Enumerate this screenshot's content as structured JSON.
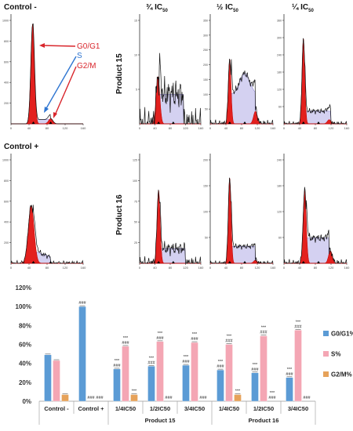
{
  "figure": {
    "row_labels": [
      "Control -",
      "Control +"
    ],
    "column_labels": [
      {
        "main": "¾ IC",
        "sub": "50"
      },
      {
        "main": "½ IC",
        "sub": "50"
      },
      {
        "main": "¼ IC",
        "sub": "50"
      }
    ],
    "product_labels": [
      "Product 15",
      "Product 16"
    ],
    "annotations": {
      "g0g1": "G0/G1",
      "s": "S",
      "g2m": "G2/M"
    }
  },
  "histograms": [
    {
      "id": "control-neg",
      "ymax_label": "1200",
      "yticks": [
        "1000",
        "800",
        "600",
        "400",
        "200"
      ],
      "xticks": [
        "0",
        "40",
        "80",
        "120",
        "160"
      ]
    },
    {
      "id": "p15-3-4",
      "ymax_label": "",
      "yticks": [
        "15",
        "10",
        "5"
      ],
      "xticks": [
        "0",
        "40",
        "80",
        "120",
        "160"
      ]
    },
    {
      "id": "p15-1-2",
      "ymax_label": "",
      "yticks": [
        "350",
        "300",
        "250",
        "200",
        "150",
        "100",
        "50"
      ],
      "xticks": [
        "0",
        "40",
        "80",
        "120",
        "160"
      ]
    },
    {
      "id": "p15-1-4",
      "ymax_label": "",
      "yticks": [
        "360",
        "300",
        "240",
        "180",
        "120",
        "60"
      ],
      "xticks": [
        "0",
        "40",
        "80",
        "120",
        "160"
      ]
    },
    {
      "id": "control-pos",
      "ymax_label": "",
      "yticks": [
        "1000",
        "800",
        "600",
        "400",
        "200"
      ],
      "xticks": [
        "0",
        "40",
        "80",
        "120",
        "160"
      ]
    },
    {
      "id": "p16-3-4",
      "ymax_label": "",
      "yticks": [
        "125",
        "100",
        "75",
        "50",
        "25"
      ],
      "xticks": [
        "0",
        "40",
        "80",
        "120",
        "160"
      ]
    },
    {
      "id": "p16-1-2",
      "ymax_label": "",
      "yticks": [
        "200",
        "150",
        "100",
        "50"
      ],
      "xticks": [
        "0",
        "40",
        "80",
        "120",
        "160"
      ]
    },
    {
      "id": "p16-1-4",
      "ymax_label": "",
      "yticks": [
        "240",
        "180",
        "120",
        "60"
      ],
      "xticks": [
        "0",
        "40",
        "80",
        "120",
        "160"
      ]
    }
  ],
  "chart_data": {
    "type": "bar",
    "categories": [
      "Control -",
      "Control +",
      "1/4IC50",
      "1/2IC50",
      "3/4IC50",
      "1/4IC50",
      "1/2IC50",
      "3/4IC50"
    ],
    "groups": [
      {
        "label": "Product 15",
        "from": 2,
        "to": 4
      },
      {
        "label": "Product 16",
        "from": 5,
        "to": 7
      }
    ],
    "series": [
      {
        "name": "G0/G1%",
        "color": "#5b9bd5",
        "values": [
          49,
          100,
          34,
          37,
          38,
          33,
          30,
          25
        ],
        "labels": [
          "",
          "###",
          "***\n###",
          "***\n###",
          "***\n###",
          "***\n###",
          "***\n###",
          "***\n###"
        ]
      },
      {
        "name": "S%",
        "color": "#f4a6b4",
        "values": [
          43,
          0,
          58,
          63,
          62,
          60,
          69,
          75
        ],
        "labels": [
          "",
          "###",
          "***\n###",
          "***\n###",
          "***\n###",
          "***\n###",
          "***\n###",
          "***\n###"
        ]
      },
      {
        "name": "G2/M%",
        "color": "#e6a25a",
        "values": [
          7,
          0,
          7,
          0,
          0,
          7,
          0,
          0
        ],
        "labels": [
          "",
          "###",
          "***",
          "###",
          "###",
          "***",
          "***\n###",
          "###"
        ]
      }
    ],
    "yticks": [
      "0%",
      "20%",
      "40%",
      "60%",
      "80%",
      "100%",
      "120%"
    ],
    "ylim": [
      0,
      120
    ],
    "legend_position": "right",
    "grid": false
  }
}
